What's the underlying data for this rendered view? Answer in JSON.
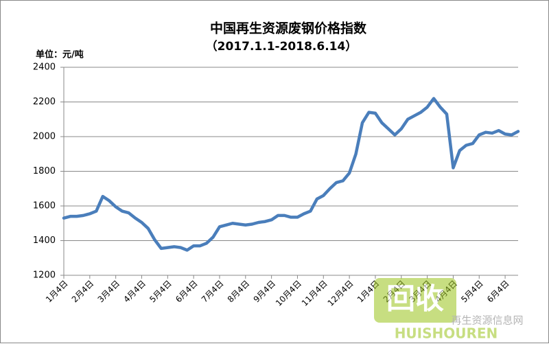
{
  "chart_data": {
    "type": "line",
    "title": "中国再生资源废钢价格指数",
    "subtitle": "（2017.1.1-2018.6.14）",
    "y_label": "单位：元/吨",
    "categories": [
      "1月4日",
      null,
      null,
      null,
      "2月4日",
      null,
      null,
      null,
      "3月4日",
      null,
      null,
      null,
      "4月4日",
      null,
      null,
      null,
      "5月4日",
      null,
      null,
      null,
      "6月4日",
      null,
      null,
      null,
      "7月4日",
      null,
      null,
      null,
      "8月4日",
      null,
      null,
      null,
      "9月4日",
      null,
      null,
      null,
      "10月4日",
      null,
      null,
      null,
      "11月4日",
      null,
      null,
      null,
      "12月4日",
      null,
      null,
      null,
      "1月4日",
      null,
      null,
      null,
      "2月4日",
      null,
      null,
      null,
      "3月4日",
      null,
      null,
      null,
      "4月4日",
      null,
      null,
      null,
      "5月4日",
      null,
      null,
      null,
      "6月4日",
      null,
      null
    ],
    "values": [
      1530,
      1540,
      1540,
      1545,
      1555,
      1570,
      1655,
      1630,
      1595,
      1570,
      1560,
      1530,
      1505,
      1470,
      1405,
      1355,
      1360,
      1365,
      1360,
      1345,
      1370,
      1370,
      1385,
      1420,
      1480,
      1490,
      1500,
      1495,
      1490,
      1495,
      1505,
      1510,
      1520,
      1545,
      1545,
      1535,
      1535,
      1555,
      1570,
      1640,
      1660,
      1700,
      1735,
      1745,
      1790,
      1900,
      2080,
      2140,
      2135,
      2080,
      2045,
      2010,
      2045,
      2100,
      2120,
      2140,
      2170,
      2220,
      2170,
      2130,
      1820,
      1920,
      1950,
      1960,
      2010,
      2025,
      2020,
      2035,
      2015,
      2010,
      2030
    ],
    "color": "#4a7ebb",
    "ylim": [
      1200,
      2400
    ],
    "yticks": [
      1200,
      1400,
      1600,
      1800,
      2000,
      2200,
      2400
    ],
    "grid": true,
    "watermark": {
      "logo": "回收",
      "site": "再生资源信息网",
      "brand": "HUISHOUREN"
    }
  }
}
